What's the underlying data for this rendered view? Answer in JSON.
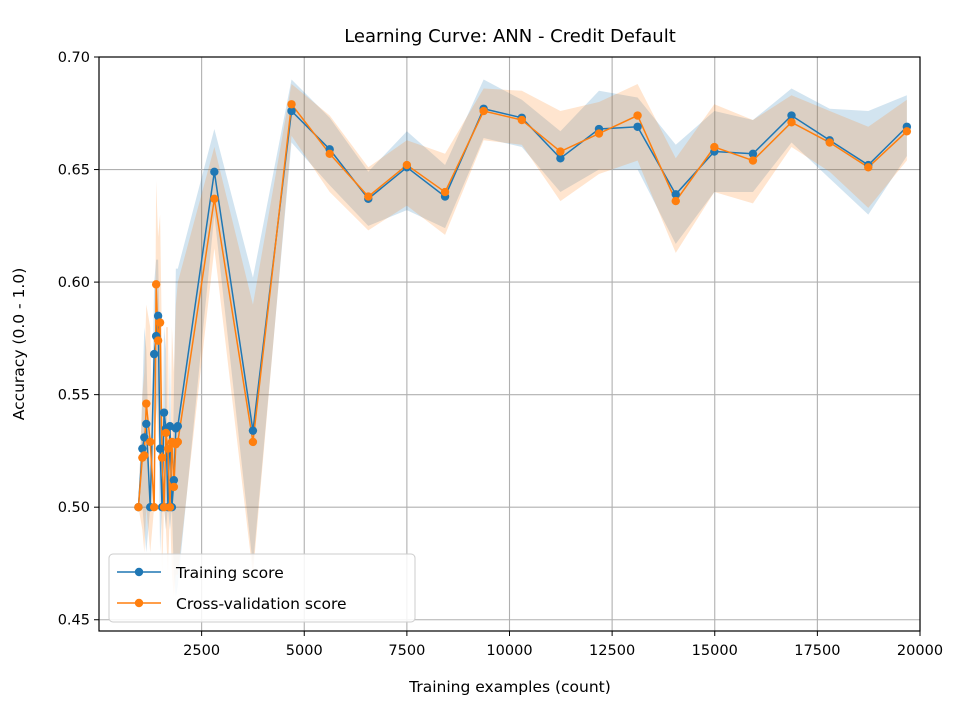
{
  "chart_data": {
    "type": "line",
    "title": "Learning Curve: ANN - Credit Default",
    "xlabel": "Training examples (count)",
    "ylabel": "Accuracy (0.0 - 1.0)",
    "xlim": [
      0,
      20000
    ],
    "ylim": [
      0.445,
      0.7
    ],
    "xticks": [
      2500,
      5000,
      7500,
      10000,
      12500,
      15000,
      17500,
      20000
    ],
    "xtick_labels": [
      "2500",
      "5000",
      "7500",
      "10000",
      "12500",
      "15000",
      "17500",
      "20000"
    ],
    "yticks": [
      0.45,
      0.5,
      0.55,
      0.6,
      0.65,
      0.7
    ],
    "ytick_labels": [
      "0.45",
      "0.50",
      "0.55",
      "0.60",
      "0.65",
      "0.70"
    ],
    "grid": true,
    "legend_position": "bottom-left",
    "series": [
      {
        "name": "Training score",
        "color": "#1f77b4",
        "band_color": "#1f77b4",
        "x": [
          960,
          1056,
          1104,
          1152,
          1248,
          1344,
          1392,
          1440,
          1488,
          1536,
          1584,
          1632,
          1680,
          1728,
          1776,
          1824,
          1872,
          1920,
          2810,
          3750,
          4690,
          5620,
          6560,
          7500,
          8430,
          9370,
          10300,
          11240,
          12180,
          13120,
          14050,
          14990,
          15930,
          16870,
          17800,
          18740,
          19680
        ],
        "values": [
          0.5,
          0.526,
          0.531,
          0.537,
          0.5,
          0.568,
          0.576,
          0.585,
          0.526,
          0.5,
          0.542,
          0.535,
          0.5,
          0.536,
          0.5,
          0.512,
          0.535,
          0.536,
          0.649,
          0.534,
          0.676,
          0.659,
          0.637,
          0.651,
          0.638,
          0.677,
          0.673,
          0.655,
          0.668,
          0.669,
          0.639,
          0.658,
          0.657,
          0.674,
          0.663,
          0.652,
          0.669
        ],
        "band_lower": [
          0.5,
          0.5,
          0.49,
          0.48,
          0.5,
          0.53,
          0.54,
          0.55,
          0.48,
          0.5,
          0.5,
          0.49,
          0.5,
          0.49,
          0.5,
          0.47,
          0.46,
          0.465,
          0.63,
          0.474,
          0.662,
          0.643,
          0.625,
          0.632,
          0.624,
          0.664,
          0.66,
          0.64,
          0.65,
          0.65,
          0.617,
          0.64,
          0.64,
          0.662,
          0.646,
          0.63,
          0.656
        ],
        "band_upper": [
          0.5,
          0.55,
          0.58,
          0.57,
          0.5,
          0.6,
          0.61,
          0.61,
          0.57,
          0.5,
          0.58,
          0.57,
          0.5,
          0.57,
          0.5,
          0.55,
          0.606,
          0.606,
          0.668,
          0.602,
          0.69,
          0.673,
          0.649,
          0.667,
          0.652,
          0.69,
          0.681,
          0.667,
          0.685,
          0.682,
          0.661,
          0.676,
          0.672,
          0.686,
          0.677,
          0.676,
          0.683
        ]
      },
      {
        "name": "Cross-validation score",
        "color": "#ff7f0e",
        "band_color": "#ff7f0e",
        "x": [
          960,
          1056,
          1104,
          1152,
          1248,
          1344,
          1392,
          1440,
          1488,
          1536,
          1584,
          1632,
          1680,
          1728,
          1776,
          1824,
          1872,
          1920,
          2810,
          3750,
          4690,
          5620,
          6560,
          7500,
          8430,
          9370,
          10300,
          11240,
          12180,
          13120,
          14050,
          14990,
          15930,
          16870,
          17800,
          18740,
          19680
        ],
        "values": [
          0.5,
          0.522,
          0.523,
          0.546,
          0.529,
          0.5,
          0.599,
          0.574,
          0.582,
          0.522,
          0.5,
          0.533,
          0.526,
          0.5,
          0.529,
          0.509,
          0.528,
          0.529,
          0.637,
          0.529,
          0.679,
          0.657,
          0.638,
          0.652,
          0.64,
          0.676,
          0.672,
          0.658,
          0.666,
          0.674,
          0.636,
          0.66,
          0.654,
          0.671,
          0.662,
          0.651,
          0.667
        ],
        "band_lower": [
          0.5,
          0.49,
          0.48,
          0.5,
          0.48,
          0.5,
          0.55,
          0.53,
          0.54,
          0.47,
          0.5,
          0.49,
          0.47,
          0.5,
          0.47,
          0.46,
          0.47,
          0.47,
          0.615,
          0.47,
          0.665,
          0.64,
          0.623,
          0.634,
          0.621,
          0.663,
          0.661,
          0.636,
          0.648,
          0.654,
          0.613,
          0.64,
          0.635,
          0.66,
          0.649,
          0.633,
          0.654
        ],
        "band_upper": [
          0.5,
          0.55,
          0.56,
          0.59,
          0.58,
          0.5,
          0.645,
          0.62,
          0.63,
          0.57,
          0.5,
          0.58,
          0.58,
          0.5,
          0.58,
          0.56,
          0.59,
          0.6,
          0.66,
          0.59,
          0.688,
          0.674,
          0.651,
          0.663,
          0.657,
          0.686,
          0.685,
          0.676,
          0.68,
          0.688,
          0.655,
          0.679,
          0.672,
          0.683,
          0.676,
          0.669,
          0.681
        ]
      }
    ]
  }
}
